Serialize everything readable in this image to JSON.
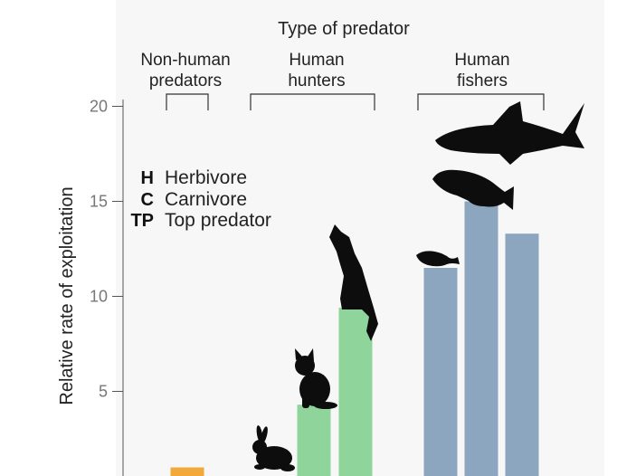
{
  "chart_data": {
    "type": "bar",
    "title": "Type of predator",
    "ylabel": "Relative rate of exploitation",
    "ylim": [
      0,
      20
    ],
    "yticks": [
      5,
      10,
      15,
      20
    ],
    "groups": [
      {
        "label_lines": [
          "Non-human",
          "predators"
        ],
        "bars": [
          1
        ]
      },
      {
        "label_lines": [
          "Human",
          "hunters"
        ],
        "bars": [
          0.3,
          4.3,
          9.4
        ]
      },
      {
        "label_lines": [
          "Human",
          "fishers"
        ],
        "bars": [
          11.5,
          15.0,
          13.3
        ]
      }
    ],
    "values": [
      1,
      0.3,
      4.3,
      9.4,
      11.5,
      15.0,
      13.3
    ],
    "colors": {
      "non_human": "#f2a93b",
      "hunters": "#8fd49b",
      "fishers": "#8da6c0"
    },
    "silhouettes": [
      "rabbit-icon",
      "cat-icon",
      "wolf-icon",
      "fish-icon",
      "grouper-icon",
      "shark-icon"
    ],
    "legend": [
      {
        "key": "H",
        "label": "Herbivore"
      },
      {
        "key": "C",
        "label": "Carnivore"
      },
      {
        "key": "TP",
        "label": "Top predator"
      }
    ],
    "legend_position": "upper-left",
    "grid": false
  }
}
